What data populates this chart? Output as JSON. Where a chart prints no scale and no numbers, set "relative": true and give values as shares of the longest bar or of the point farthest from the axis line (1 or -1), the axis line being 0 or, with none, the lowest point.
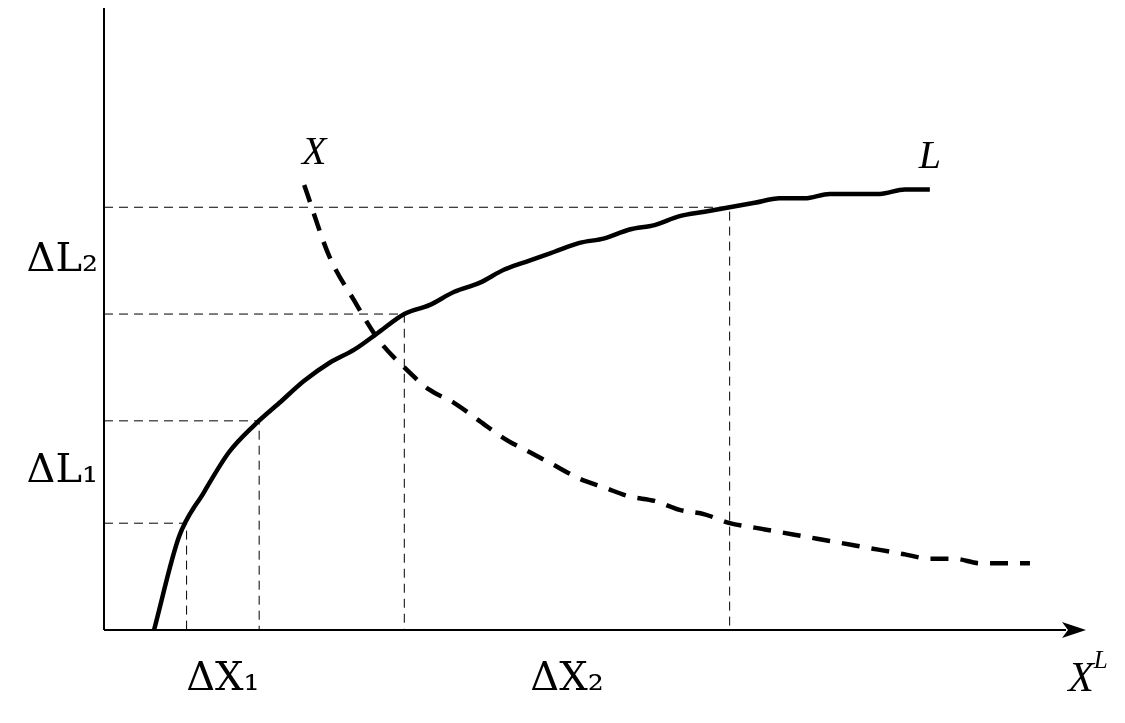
{
  "chart_data": {
    "type": "line",
    "relative": true,
    "xlabel": "X$^{L}$",
    "categories": [
      null,
      null,
      null,
      null,
      null,
      null,
      null,
      null,
      null,
      null,
      null,
      null,
      null,
      null,
      null,
      null,
      null,
      null,
      null,
      null,
      null,
      null,
      null,
      null,
      null,
      null,
      null,
      null,
      null,
      null,
      null,
      null,
      null,
      null,
      null,
      null,
      null,
      null,
      null,
      null
    ],
    "series": [
      {
        "name": "L",
        "color": "#000000",
        "line_style": "solid",
        "values": [
          null,
          null,
          0,
          0.21,
          0.31,
          0.4,
          0.46,
          0.51,
          0.56,
          0.6,
          0.63,
          0.67,
          0.71,
          0.73,
          0.76,
          0.78,
          0.81,
          0.83,
          0.85,
          0.87,
          0.88,
          0.9,
          0.91,
          0.93,
          0.94,
          0.95,
          0.96,
          0.97,
          0.97,
          0.98,
          0.98,
          0.98,
          0.99,
          0.99,
          null,
          null,
          null,
          null,
          null,
          null
        ]
      },
      {
        "name": "X",
        "color": "#000000",
        "line_style": "dashed",
        "values": [
          null,
          null,
          null,
          null,
          null,
          null,
          null,
          null,
          1.0,
          0.84,
          0.74,
          0.65,
          0.59,
          0.54,
          0.51,
          0.47,
          0.43,
          0.4,
          0.37,
          0.34,
          0.32,
          0.3,
          0.29,
          0.27,
          0.26,
          0.24,
          0.23,
          0.22,
          0.21,
          0.2,
          0.19,
          0.18,
          0.17,
          0.16,
          0.16,
          0.15,
          0.15,
          0.15,
          null,
          null
        ]
      }
    ],
    "ref_lines": [
      {
        "axis": "y",
        "value": 0.24,
        "line_style": "dashed"
      },
      {
        "axis": "y",
        "value": 0.47,
        "line_style": "dashed"
      },
      {
        "axis": "y",
        "value": 0.71,
        "line_style": "dashed"
      },
      {
        "axis": "y",
        "value": 0.95,
        "line_style": "dashed"
      }
    ],
    "annotations": [
      "ΔL₁",
      "ΔL₂",
      "ΔX₁",
      "ΔX₂"
    ],
    "marker": "none",
    "legend": false
  }
}
